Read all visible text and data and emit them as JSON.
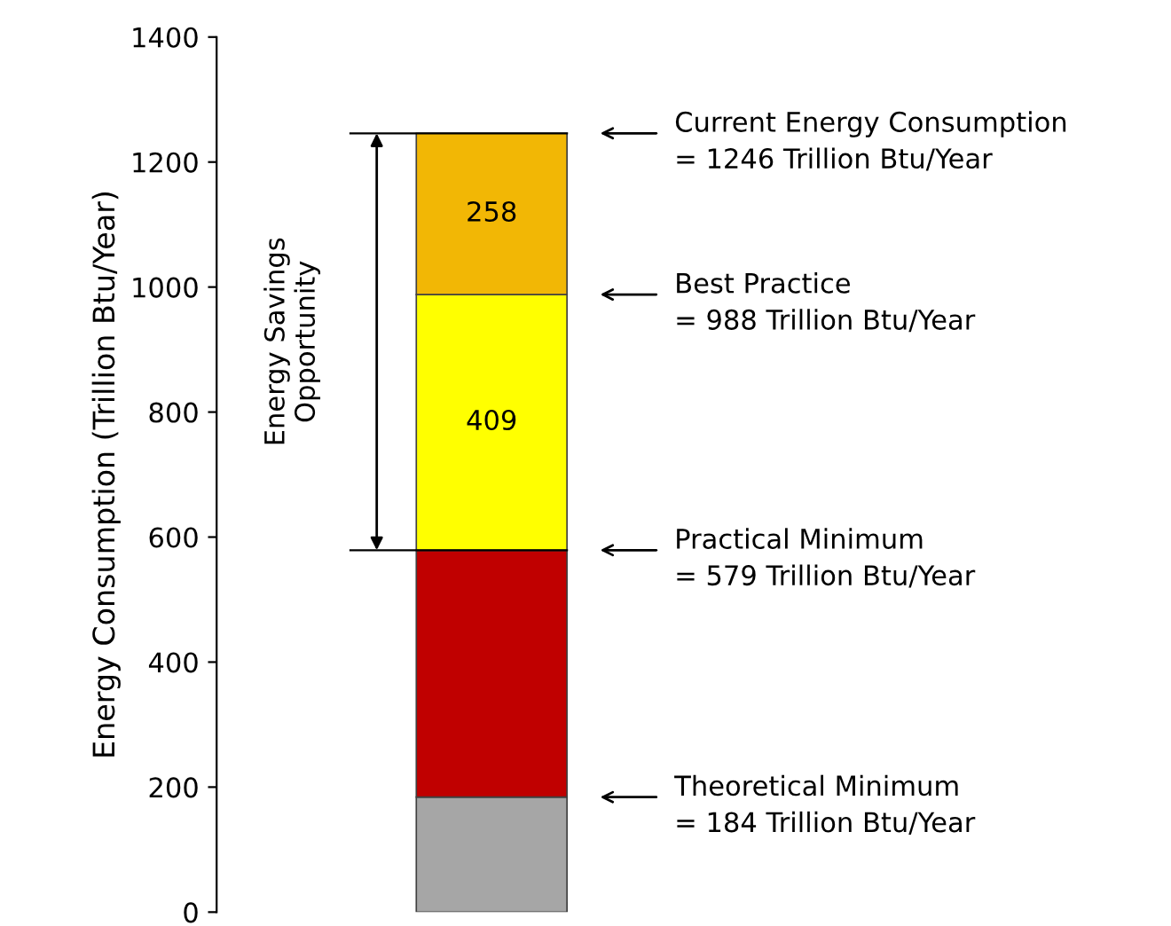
{
  "chart_data": {
    "type": "bar",
    "stacked": true,
    "categories": [
      null
    ],
    "series": [
      {
        "color": "#a6a6a6",
        "values": [
          184
        ]
      },
      {
        "color": "#c00000",
        "values": [
          395
        ]
      },
      {
        "color": "#ffff00",
        "values": [
          409
        ],
        "value_labels": [
          "409"
        ]
      },
      {
        "color": "#f2b705",
        "values": [
          258
        ],
        "value_labels": [
          "258"
        ]
      }
    ],
    "ylabel": "Energy Consumption (Trillion Btu/Year)",
    "ylim": [
      0,
      1400
    ],
    "yticks": [
      0,
      200,
      400,
      600,
      800,
      1000,
      1200,
      1400
    ],
    "tick_labels": "y",
    "grid": false,
    "ref_lines": [
      {
        "axis": "y",
        "value": 579,
        "color": "#000000"
      },
      {
        "axis": "y",
        "value": 1246,
        "color": "#000000"
      }
    ],
    "annotations": [
      "Current Energy Consumption\n= 1246 Trillion Btu/Year",
      "Best Practice\n= 988 Trillion Btu/Year",
      "Practical Minimum\n= 579 Trillion Btu/Year",
      "Theoretical Minimum\n= 184 Trillion Btu/Year",
      "Energy Savings\nOpportunity"
    ]
  }
}
